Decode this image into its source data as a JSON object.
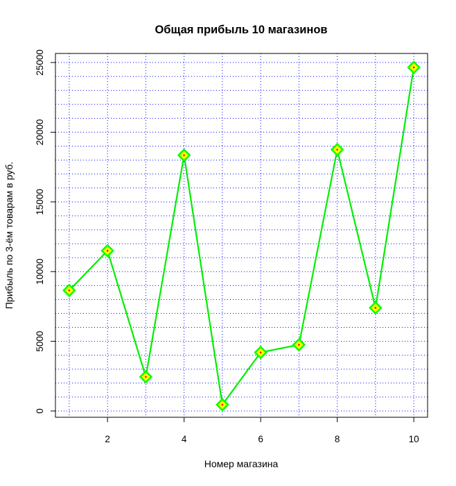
{
  "chart_data": {
    "type": "line",
    "title": "Общая прибыль 10 магазинов",
    "xlabel": "Номер магазина",
    "ylabel": "Прибыль по 3-ём товарам в руб.",
    "x": [
      1,
      2,
      3,
      4,
      5,
      6,
      7,
      8,
      9,
      10
    ],
    "series": [
      {
        "values": [
          8650,
          11500,
          2450,
          18350,
          450,
          4200,
          4750,
          18750,
          7400,
          24650
        ]
      }
    ],
    "x_ticks": [
      "2",
      "4",
      "6",
      "8",
      "10"
    ],
    "y_ticks": [
      "0",
      "5000",
      "10000",
      "15000",
      "20000",
      "25000"
    ],
    "xlim": [
      0.64,
      10.36
    ],
    "ylim": [
      -450,
      25650
    ],
    "grid": "on",
    "grid_style": "dotted",
    "line_color": "#00ee00",
    "marker": "diamond",
    "marker_edge_color": "#00ff00",
    "marker_fill_color": "#ffff00",
    "marker_center_color": "#ff0000",
    "grid_color": "#0000ff"
  }
}
